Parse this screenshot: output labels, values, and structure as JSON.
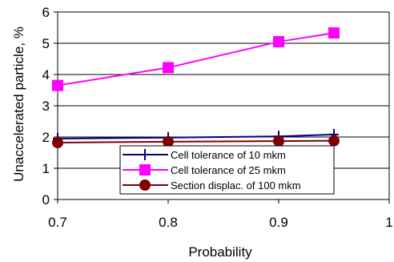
{
  "chart_data": {
    "type": "line",
    "title": "",
    "xlabel": "Probability",
    "ylabel": "Unaccelerated particle, %",
    "xlim": [
      0.7,
      1
    ],
    "ylim": [
      0,
      6
    ],
    "xticks": [
      0.7,
      0.8,
      0.9,
      1
    ],
    "yticks": [
      0,
      1,
      2,
      3,
      4,
      5,
      6
    ],
    "x_tick_labels": [
      "0.7",
      "0.8",
      "0.9",
      "1"
    ],
    "y_tick_labels": [
      "0",
      "1",
      "2",
      "3",
      "4",
      "5",
      "6"
    ],
    "grid": "horizontal",
    "legend_position": "bottom-right",
    "series": [
      {
        "name": "Cell tolerance of 10 mkm",
        "color": "#000080",
        "marker": "plus",
        "x": [
          0.7,
          0.8,
          0.9,
          0.95
        ],
        "y": [
          1.95,
          1.98,
          2.02,
          2.08
        ]
      },
      {
        "name": "Cell tolerance of 25 mkm",
        "color": "#ff00ff",
        "marker": "square",
        "x": [
          0.7,
          0.8,
          0.9,
          0.95
        ],
        "y": [
          3.65,
          4.22,
          5.05,
          5.33
        ]
      },
      {
        "name": "Section displac. of 100 mkm",
        "color": "#800000",
        "marker": "circle",
        "x": [
          0.7,
          0.8,
          0.9,
          0.95
        ],
        "y": [
          1.82,
          1.85,
          1.87,
          1.88
        ]
      }
    ]
  }
}
